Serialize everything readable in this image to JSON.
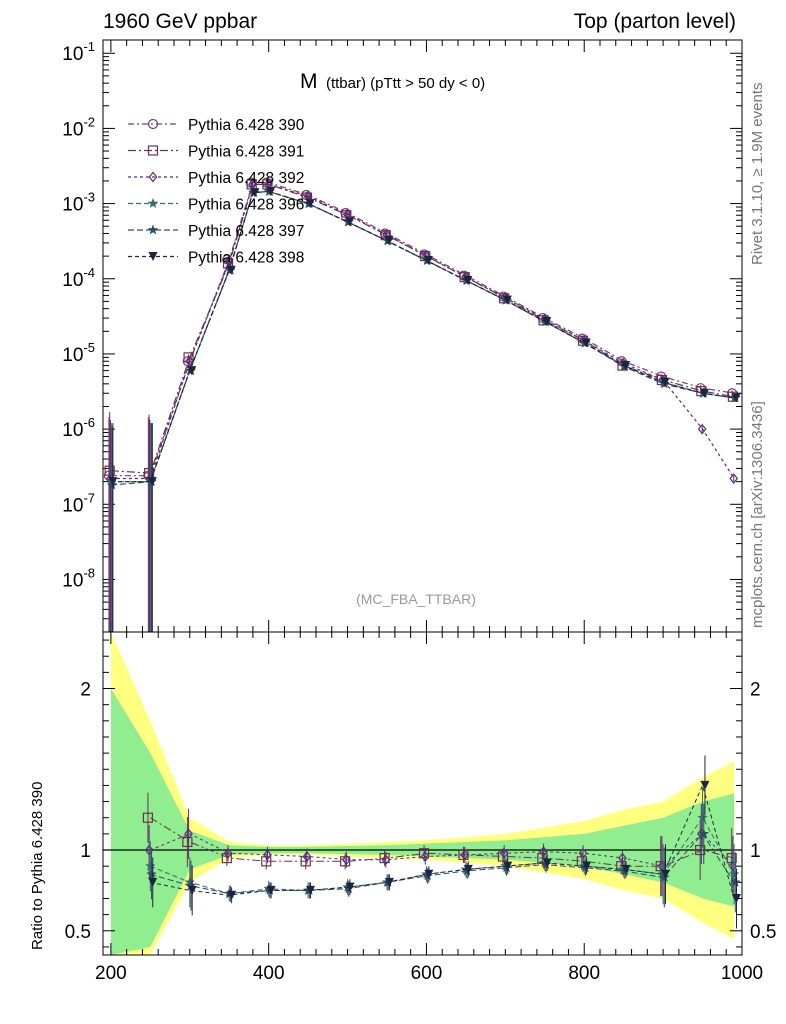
{
  "header": {
    "left": "1960 GeV ppbar",
    "right": "Top (parton level)"
  },
  "side_labels": {
    "rivet": "Rivet 3.1.10, ≥ 1.9M events",
    "mcplots": "mcplots.cern.ch [arXiv:1306.3436]"
  },
  "plot_title": {
    "main": "M",
    "sub": "(ttbar) (pTtt > 50 dy < 0)"
  },
  "analysis_label": "(MC_FBA_TTBAR)",
  "ratio_ylabel": "Ratio to Pythia 6.428 390",
  "colors": {
    "band_green": "#90ee90",
    "band_yellow": "#ffff80",
    "s390": "#7b3d6e",
    "s391": "#6e3050",
    "s392": "#5a2a7a",
    "s396": "#3d6a70",
    "s397": "#2e4e60",
    "s398": "#1b2440"
  },
  "chart_data": [
    {
      "type": "line",
      "title": "M (ttbar) (pTtt > 50 dy < 0)",
      "yscale": "log",
      "xlim": [
        190,
        1000
      ],
      "ylim": [
        2e-09,
        0.15
      ],
      "ytick_labels": [
        "10^-1",
        "10^-2",
        "10^-3",
        "10^-4",
        "10^-5",
        "10^-6",
        "10^-7",
        "10^-8"
      ],
      "xtick_labels": [
        "200",
        "400",
        "600",
        "800",
        "1000"
      ],
      "x": [
        200,
        250,
        300,
        350,
        380,
        400,
        450,
        500,
        550,
        600,
        650,
        700,
        750,
        800,
        850,
        900,
        950,
        990
      ],
      "series": [
        {
          "name": "Pythia 6.428 390",
          "marker": "circle",
          "values": [
            2.4e-07,
            2.4e-07,
            8e-06,
            0.00018,
            0.0019,
            0.0019,
            0.0013,
            0.00075,
            0.0004,
            0.00021,
            0.00011,
            5.8e-05,
            3e-05,
            1.6e-05,
            8e-06,
            5e-06,
            3.5e-06,
            3e-06
          ]
        },
        {
          "name": "Pythia 6.428 391",
          "marker": "square",
          "values": [
            2.8e-07,
            2.6e-07,
            9e-06,
            0.00016,
            0.0018,
            0.0018,
            0.0012,
            0.0007,
            0.00038,
            0.0002,
            0.000105,
            5.5e-05,
            2.8e-05,
            1.5e-05,
            7e-06,
            4.5e-06,
            3.2e-06,
            2.7e-06
          ]
        },
        {
          "name": "Pythia 6.428 392",
          "marker": "diamond",
          "values": [
            2.2e-07,
            2.2e-07,
            8e-06,
            0.00017,
            0.0018,
            0.0018,
            0.00125,
            0.00072,
            0.00038,
            0.0002,
            0.000105,
            5.6e-05,
            2.9e-05,
            1.5e-05,
            7.5e-06,
            4.5e-06,
            1e-06,
            2.2e-07
          ]
        },
        {
          "name": "Pythia 6.428 396",
          "marker": "star",
          "values": [
            2e-07,
            2e-07,
            6e-06,
            0.00013,
            0.0014,
            0.00145,
            0.001,
            0.00057,
            0.00032,
            0.000175,
            9.5e-05,
            5.2e-05,
            2.7e-05,
            1.4e-05,
            7e-06,
            4.2e-06,
            3e-06,
            2.6e-06
          ]
        },
        {
          "name": "Pythia 6.428 397",
          "marker": "star",
          "values": [
            1.8e-07,
            2e-07,
            6e-06,
            0.00013,
            0.0014,
            0.00145,
            0.001,
            0.00057,
            0.00032,
            0.000175,
            9.5e-05,
            5.2e-05,
            2.7e-05,
            1.4e-05,
            6.8e-06,
            4e-06,
            3e-06,
            2.6e-06
          ]
        },
        {
          "name": "Pythia 6.428 398",
          "marker": "triangle-down",
          "values": [
            2e-07,
            2e-07,
            6e-06,
            0.00013,
            0.0014,
            0.00145,
            0.001,
            0.00057,
            0.00032,
            0.000175,
            9.5e-05,
            5.2e-05,
            2.7e-05,
            1.4e-05,
            7e-06,
            4.2e-06,
            3e-06,
            2.6e-06
          ]
        }
      ]
    },
    {
      "type": "line",
      "ylabel": "Ratio to Pythia 6.428 390",
      "xlim": [
        190,
        1000
      ],
      "ylim": [
        0.35,
        2.35
      ],
      "ytick_labels": [
        "0.5",
        "1",
        "2"
      ],
      "xtick_labels": [
        "200",
        "400",
        "600",
        "800",
        "1000"
      ],
      "x": [
        250,
        300,
        350,
        400,
        450,
        500,
        550,
        600,
        650,
        700,
        750,
        800,
        850,
        900,
        950,
        990
      ],
      "bands": {
        "x": [
          200,
          250,
          300,
          350,
          400,
          450,
          500,
          550,
          600,
          650,
          700,
          750,
          800,
          850,
          900,
          950,
          990
        ],
        "green_half": [
          1.0,
          0.6,
          0.12,
          0.03,
          0.02,
          0.02,
          0.025,
          0.03,
          0.04,
          0.05,
          0.06,
          0.08,
          0.1,
          0.15,
          0.2,
          0.3,
          0.35
        ],
        "yellow_half": [
          1.4,
          0.8,
          0.2,
          0.05,
          0.03,
          0.03,
          0.04,
          0.05,
          0.06,
          0.08,
          0.1,
          0.14,
          0.18,
          0.25,
          0.3,
          0.45,
          0.55
        ]
      },
      "series": [
        {
          "name": "Pythia 6.428 391",
          "values": [
            1.2,
            1.05,
            0.95,
            0.93,
            0.93,
            0.93,
            0.95,
            0.98,
            0.97,
            0.96,
            0.95,
            0.93,
            0.9,
            0.9,
            1.0,
            0.95
          ]
        },
        {
          "name": "Pythia 6.428 392",
          "values": [
            1.0,
            1.1,
            0.98,
            0.97,
            0.96,
            0.94,
            0.94,
            0.96,
            0.97,
            0.98,
            0.99,
            0.98,
            0.95,
            0.9,
            1.1,
            0.9
          ]
        },
        {
          "name": "Pythia 6.428 396",
          "values": [
            0.9,
            0.8,
            0.73,
            0.76,
            0.75,
            0.77,
            0.8,
            0.85,
            0.88,
            0.9,
            0.92,
            0.9,
            0.88,
            0.85,
            1.2,
            0.85
          ]
        },
        {
          "name": "Pythia 6.428 397",
          "values": [
            0.85,
            0.78,
            0.73,
            0.75,
            0.75,
            0.76,
            0.8,
            0.84,
            0.87,
            0.89,
            0.91,
            0.89,
            0.87,
            0.83,
            1.1,
            0.8
          ]
        },
        {
          "name": "Pythia 6.428 398",
          "values": [
            0.8,
            0.75,
            0.72,
            0.75,
            0.75,
            0.77,
            0.8,
            0.85,
            0.88,
            0.9,
            0.92,
            0.9,
            0.88,
            0.85,
            1.4,
            0.7
          ]
        }
      ]
    }
  ]
}
